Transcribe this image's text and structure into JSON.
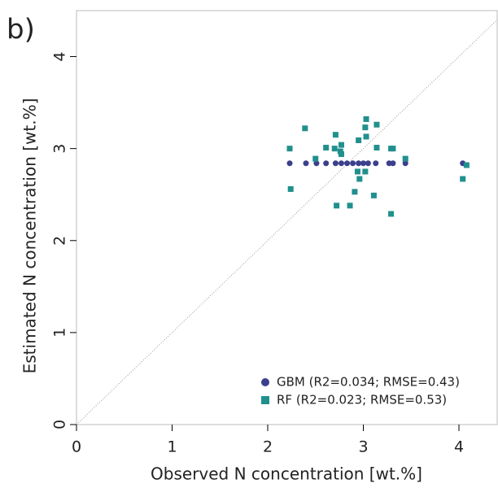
{
  "chart_data": {
    "type": "scatter",
    "panel_label": "b)",
    "x_label": "Observed N concentration [wt.%]",
    "y_label": "Estimated N concentration [wt.%]",
    "xlim": [
      0,
      4.4
    ],
    "ylim": [
      0,
      4.5
    ],
    "xticks": [
      0,
      1,
      2,
      3,
      4
    ],
    "yticks": [
      0,
      1,
      2,
      3,
      4
    ],
    "legend_position": "bottom right",
    "series": [
      {
        "name": "GBM (R2=0.034; RMSE=0.43)",
        "color": "#3b3f8c",
        "marker": "circle",
        "x": [
          2.23,
          2.4,
          2.51,
          2.61,
          2.71,
          2.77,
          2.83,
          2.89,
          2.95,
          3.0,
          3.05,
          3.13,
          3.27,
          3.31,
          3.44,
          4.04
        ],
        "values": [
          2.84,
          2.84,
          2.84,
          2.84,
          2.84,
          2.84,
          2.84,
          2.84,
          2.84,
          2.84,
          2.84,
          2.84,
          2.84,
          2.84,
          2.84,
          2.84
        ]
      },
      {
        "name": "RF (R2=0.023; RMSE=0.53)",
        "color": "#21908d",
        "marker": "square",
        "x": [
          2.23,
          2.24,
          2.39,
          2.5,
          2.61,
          2.71,
          2.7,
          2.72,
          2.76,
          2.77,
          2.77,
          2.86,
          2.91,
          2.95,
          2.94,
          2.96,
          3.03,
          3.02,
          3.03,
          3.02,
          3.11,
          3.14,
          3.14,
          3.29,
          3.31,
          3.29,
          3.44,
          4.04,
          4.08
        ],
        "values": [
          3.0,
          2.56,
          3.22,
          2.89,
          3.01,
          3.15,
          3.0,
          2.38,
          2.97,
          3.04,
          2.94,
          2.38,
          2.53,
          3.09,
          2.75,
          2.67,
          3.32,
          3.23,
          3.13,
          2.75,
          2.49,
          3.26,
          3.01,
          3.0,
          3.0,
          2.29,
          2.89,
          2.67,
          2.82
        ]
      }
    ]
  }
}
